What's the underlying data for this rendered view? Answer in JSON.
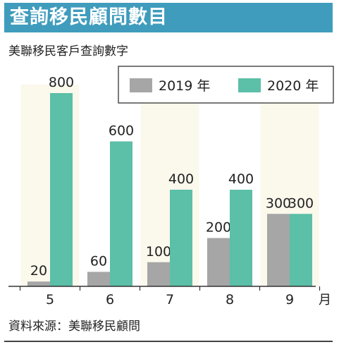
{
  "header": {
    "title": "查詢移民顧問數目",
    "subtitle": "美聯移民客戶查詢數字"
  },
  "footer": {
    "source": "資料來源：美聯移民顧問"
  },
  "colors": {
    "title_band": "#3f9cbd",
    "series_2019": "#a6a6a6",
    "series_2020": "#5cbfa8",
    "band": "#fbf8ec"
  },
  "chart_data": {
    "type": "bar",
    "title": "",
    "xlabel": "月",
    "ylabel": "",
    "categories": [
      "5",
      "6",
      "7",
      "8",
      "9"
    ],
    "series": [
      {
        "name": "2019 年",
        "values": [
          20,
          60,
          100,
          200,
          300
        ]
      },
      {
        "name": "2020 年",
        "values": [
          800,
          600,
          400,
          400,
          300
        ]
      }
    ],
    "ylim": [
      0,
      800
    ],
    "legend": "top-right",
    "grid": false
  }
}
